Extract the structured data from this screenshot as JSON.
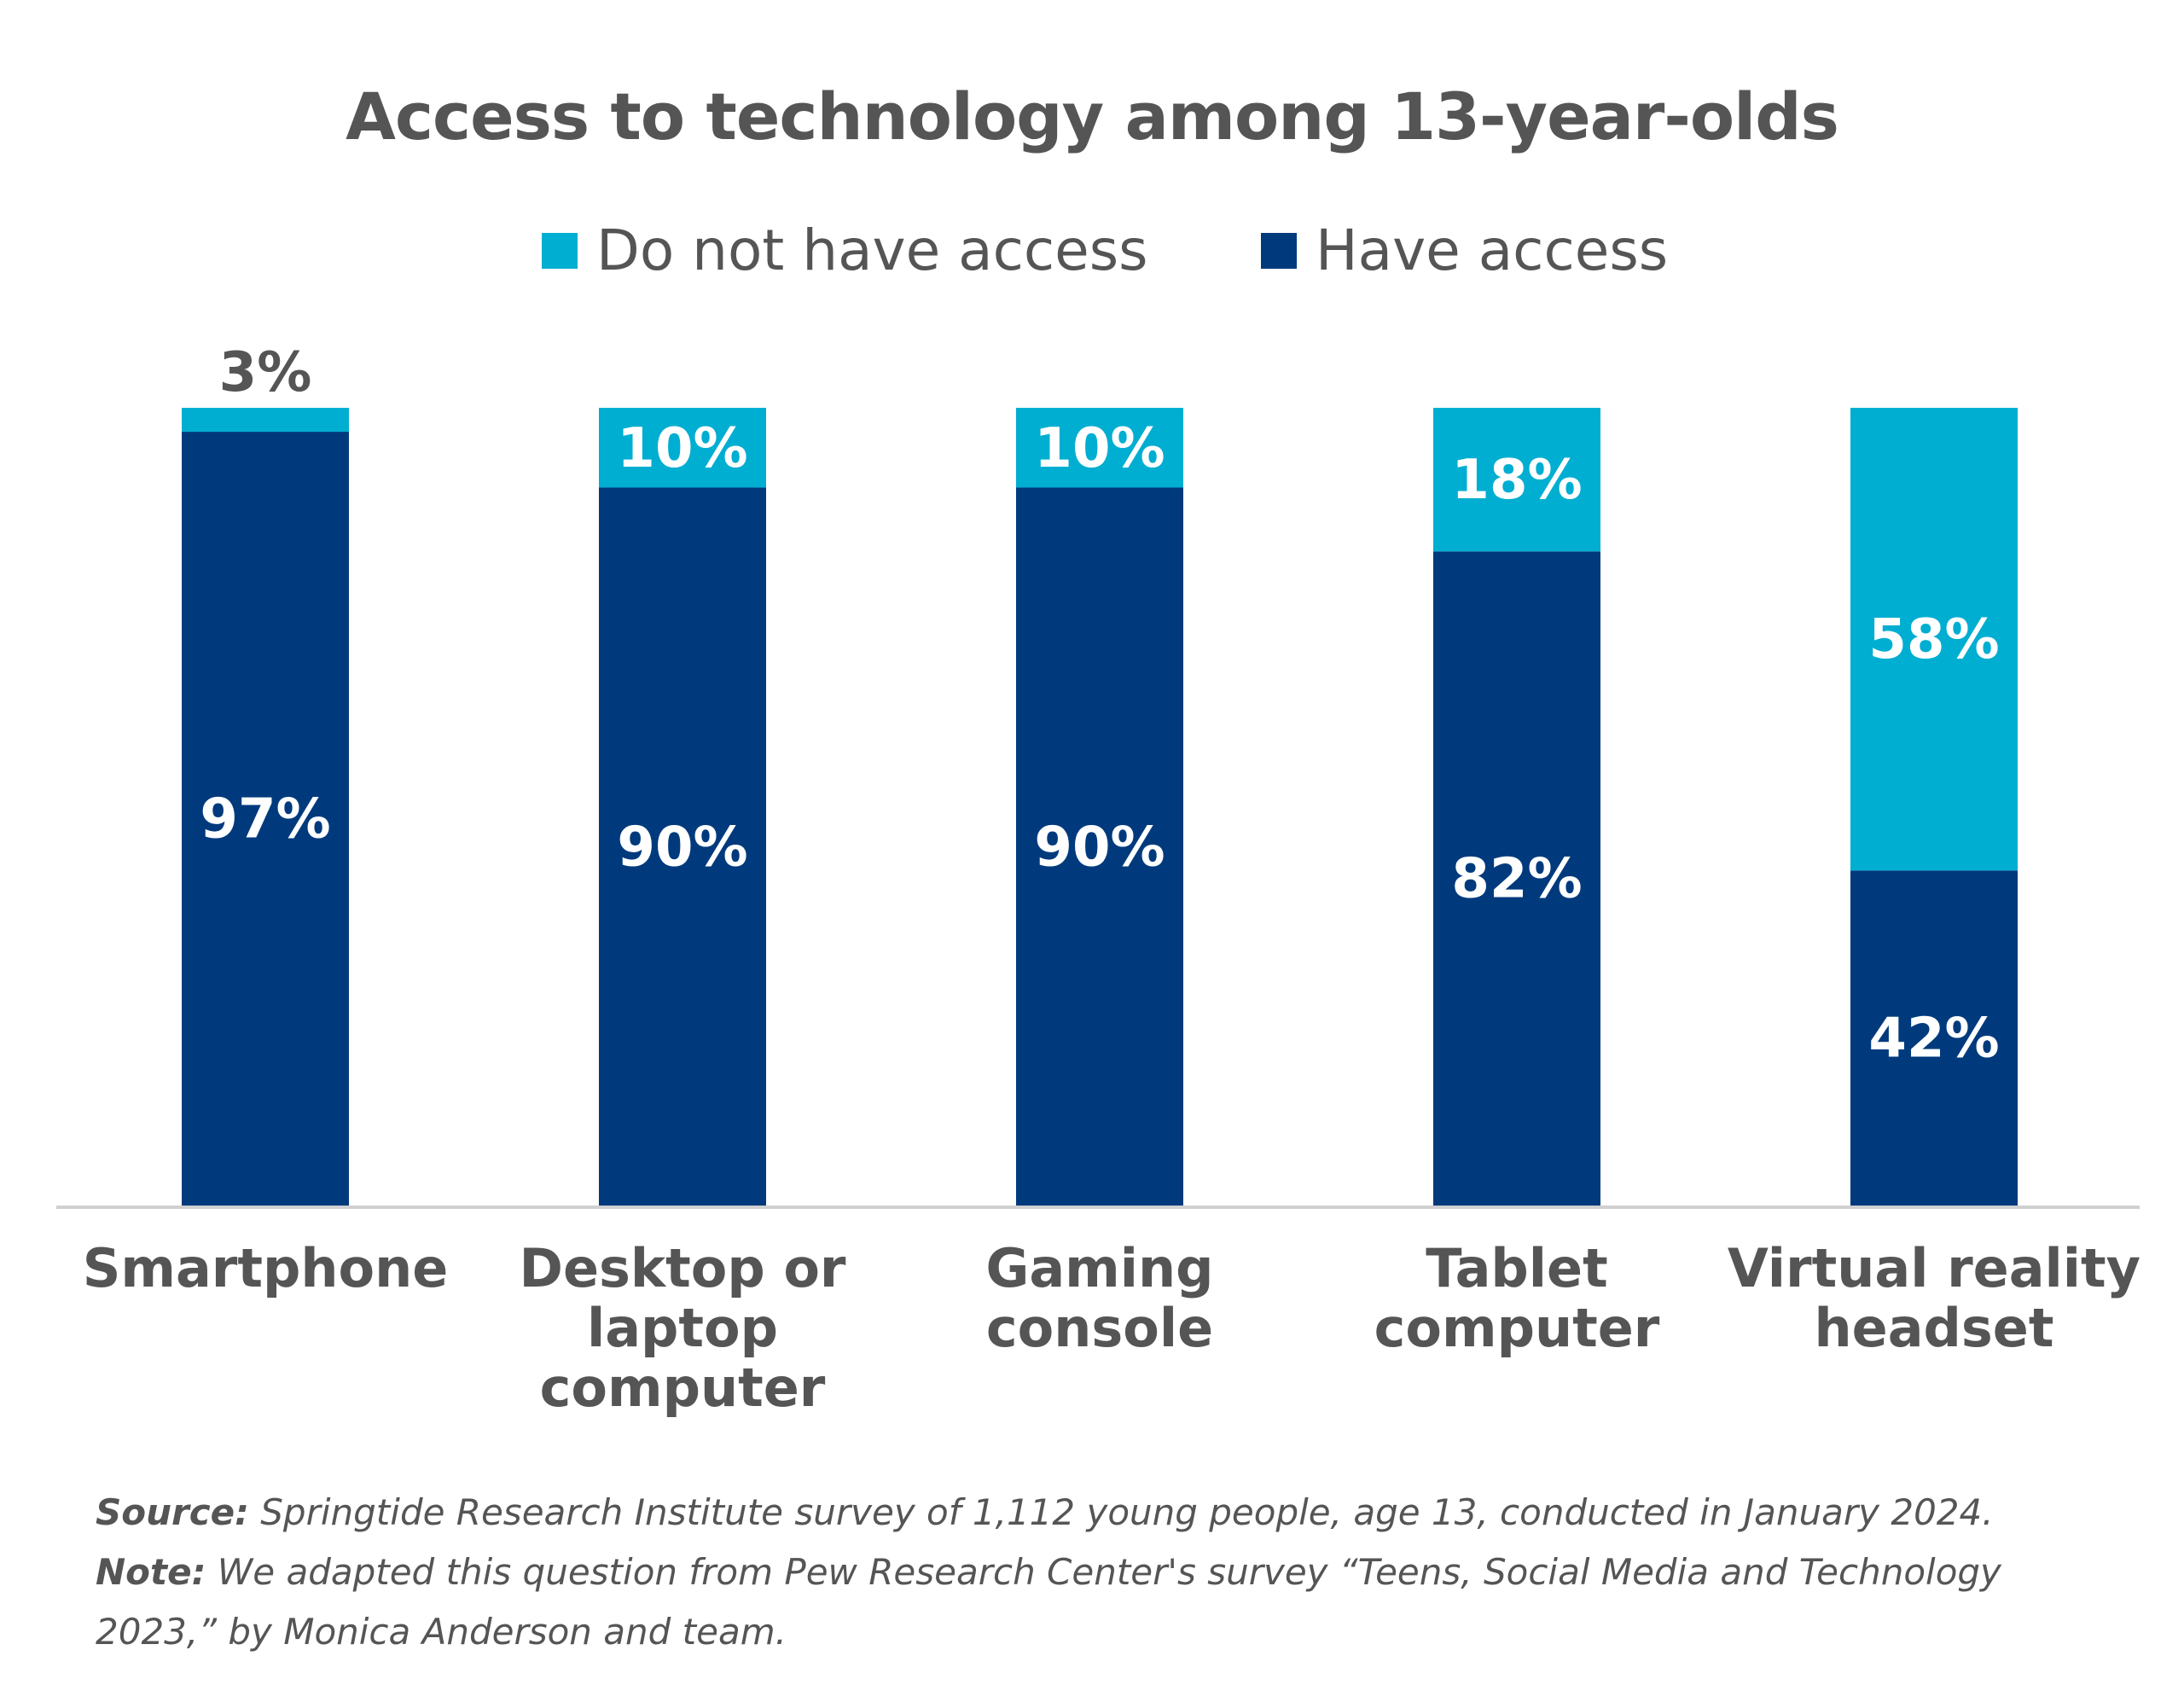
{
  "chart_data": {
    "type": "stacked-bar",
    "title": "Access to technology among 13-year-olds",
    "categories": [
      [
        "Smartphone"
      ],
      [
        "Desktop or",
        "laptop",
        "computer"
      ],
      [
        "Gaming",
        "console"
      ],
      [
        "Tablet",
        "computer"
      ],
      [
        "Virtual reality",
        "headset"
      ]
    ],
    "series": [
      {
        "name": "Have access",
        "color": "#003a7d",
        "values": [
          97,
          90,
          90,
          82,
          42
        ],
        "labels": [
          "97%",
          "90%",
          "90%",
          "82%",
          "42%"
        ]
      },
      {
        "name": "Do not have access",
        "color": "#00aed1",
        "values": [
          3,
          10,
          10,
          18,
          58
        ],
        "labels": [
          "3%",
          "10%",
          "10%",
          "18%",
          "58%"
        ]
      }
    ],
    "ylim": [
      0,
      100
    ],
    "legend_order": [
      "Do not have access",
      "Have access"
    ],
    "legend_position": "top-center"
  },
  "footer": {
    "source_label": "Source:",
    "source_text": "Springtide Research Institute survey of 1,112 young people, age 13, conducted in January 2024.",
    "note_label": "Note:",
    "note_text": "We adapted this question from Pew Research Center's survey “Teens, Social Media and Technology 2023,” by Monica Anderson and team."
  }
}
